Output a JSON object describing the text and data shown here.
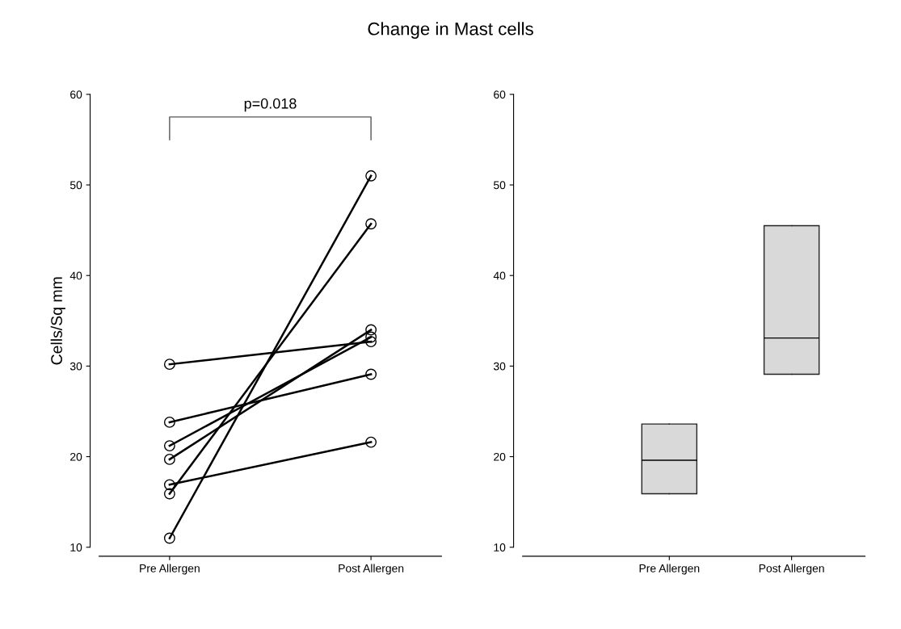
{
  "chart_data": [
    {
      "type": "line",
      "title": "Change in Mast cells",
      "ylabel": "Cells/Sq mm",
      "categories": [
        "Pre Allergen",
        "Post Allergen"
      ],
      "series": [
        {
          "color": "#000000",
          "values": [
            30.2,
            32.7
          ]
        },
        {
          "color": "#000000",
          "values": [
            23.8,
            29.1
          ]
        },
        {
          "color": "#000000",
          "values": [
            21.2,
            33.2
          ]
        },
        {
          "color": "#000000",
          "values": [
            19.7,
            34.0
          ]
        },
        {
          "color": "#000000",
          "values": [
            16.9,
            21.6
          ]
        },
        {
          "color": "#000000",
          "values": [
            15.9,
            45.7
          ]
        },
        {
          "color": "#000000",
          "values": [
            11.0,
            51.0
          ]
        }
      ],
      "marker": "circle",
      "line_style": "solid",
      "ylim": [
        10,
        60
      ],
      "yticks": [
        10,
        20,
        30,
        40,
        50,
        60
      ],
      "grid": false,
      "annotations": [
        "p=0.018"
      ]
    },
    {
      "type": "box",
      "categories": [
        "Pre Allergen",
        "Post Allergen"
      ],
      "color": "#d9d9d9",
      "boxes": [
        {
          "low": 15.9,
          "q1": 15.9,
          "median": 19.6,
          "q3": 23.6,
          "high": 23.6
        },
        {
          "low": 29.1,
          "q1": 29.1,
          "median": 33.1,
          "q3": 45.5,
          "high": 45.5
        }
      ],
      "ylim": [
        10,
        60
      ],
      "yticks": [
        10,
        20,
        30,
        40,
        50,
        60
      ],
      "grid": false
    }
  ]
}
